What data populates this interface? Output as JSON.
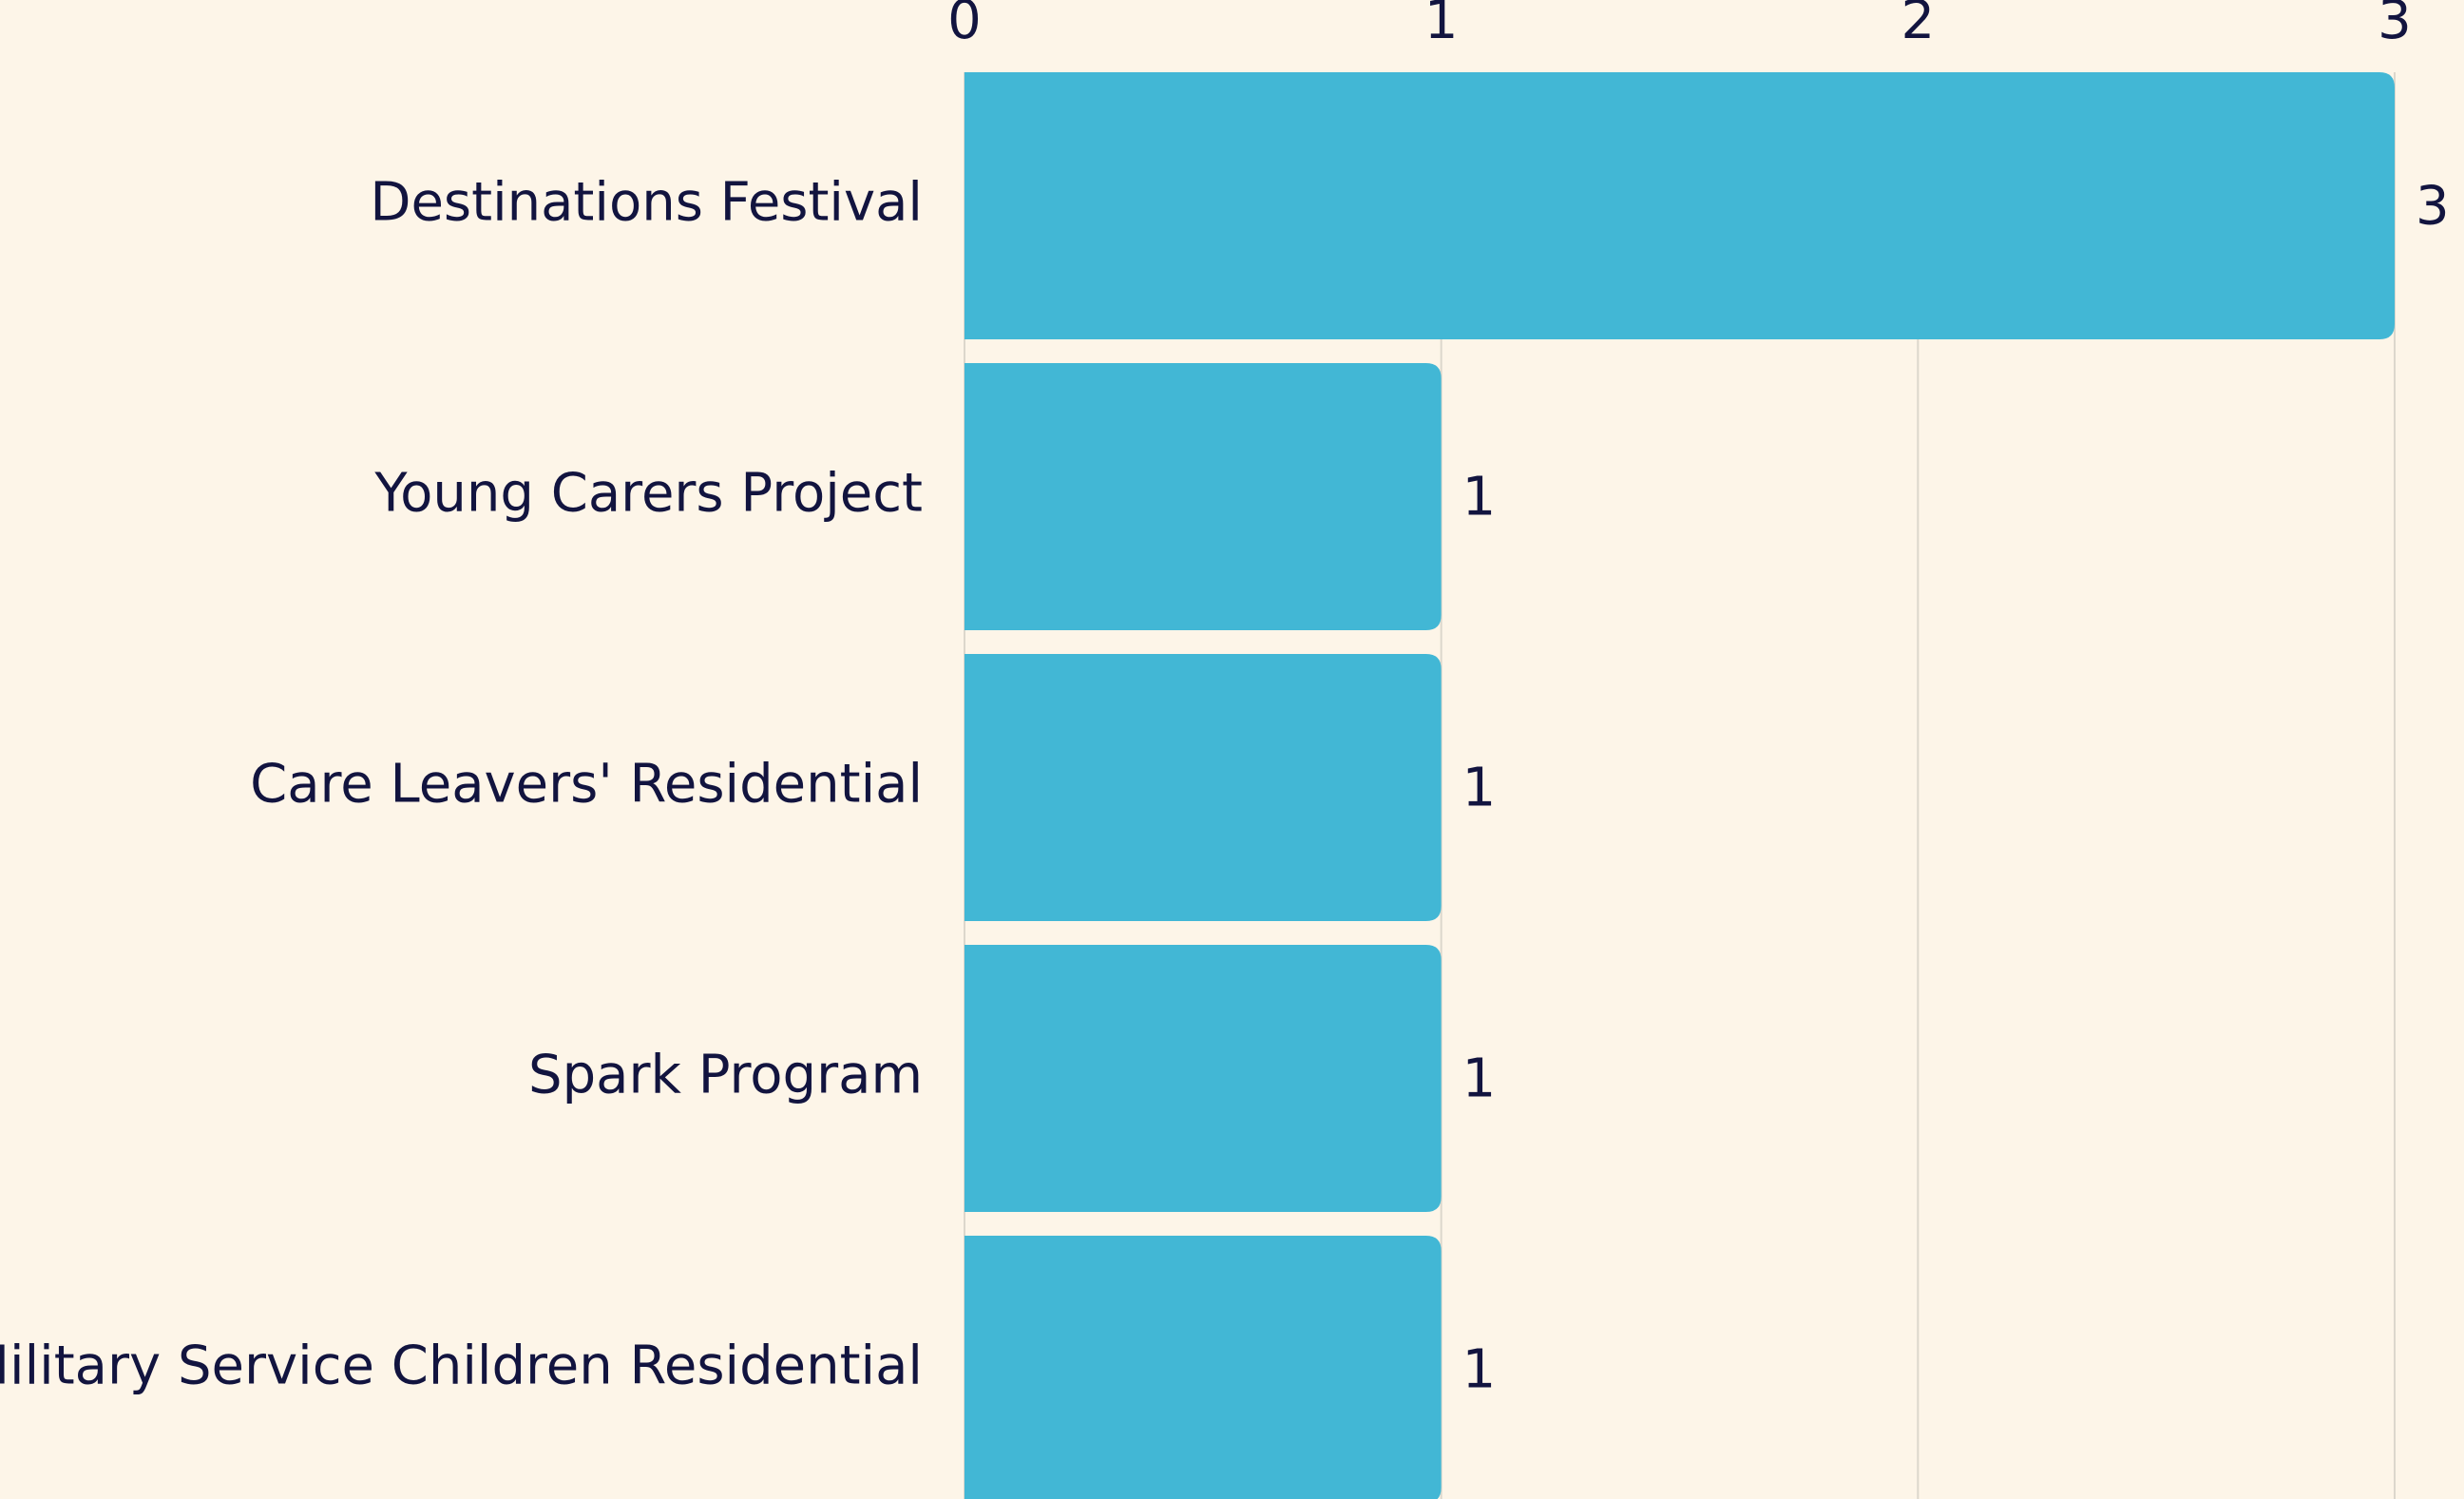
{
  "chart_data": {
    "type": "hbar",
    "categories": [
      "Destinations Festival",
      "Young Carers Project",
      "Care Leavers' Residential",
      "Spark Program",
      "Military Service Children Residential"
    ],
    "values": [
      3,
      1,
      1,
      1,
      1
    ],
    "color": "#42b7d5",
    "xlim": [
      0,
      3
    ],
    "xticks": [
      0,
      1,
      2,
      3
    ],
    "grid": true
  }
}
